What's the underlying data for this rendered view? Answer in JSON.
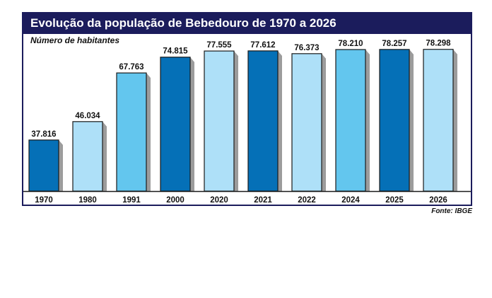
{
  "chart_data": {
    "type": "bar",
    "title": "Evolução da população de Bebedouro de 1970 a 2026",
    "subtitle": "Número de habitantes",
    "source": "Fonte: IBGE",
    "categories": [
      "1970",
      "1980",
      "1991",
      "2000",
      "2020",
      "2021",
      "2022",
      "2024",
      "2025",
      "2026"
    ],
    "values": [
      37816,
      46034,
      67763,
      74815,
      77555,
      77612,
      76373,
      78210,
      78257,
      78298
    ],
    "value_labels": [
      "37.816",
      "46.034",
      "67.763",
      "74.815",
      "77.555",
      "77.612",
      "76.373",
      "78.210",
      "78.257",
      "78.298"
    ],
    "bar_colors": [
      "#0570b7",
      "#aee0f8",
      "#63c6ee",
      "#0570b7",
      "#aee0f8",
      "#0570b7",
      "#aee0f8",
      "#63c6ee",
      "#0570b7",
      "#aee0f8"
    ],
    "colors": {
      "title_bar": "#1b1c5c",
      "shadow": "#9c9c9c",
      "outline": "#1a1a1a"
    },
    "ylim": [
      15000,
      82000
    ],
    "grid": false,
    "legend": "none"
  }
}
